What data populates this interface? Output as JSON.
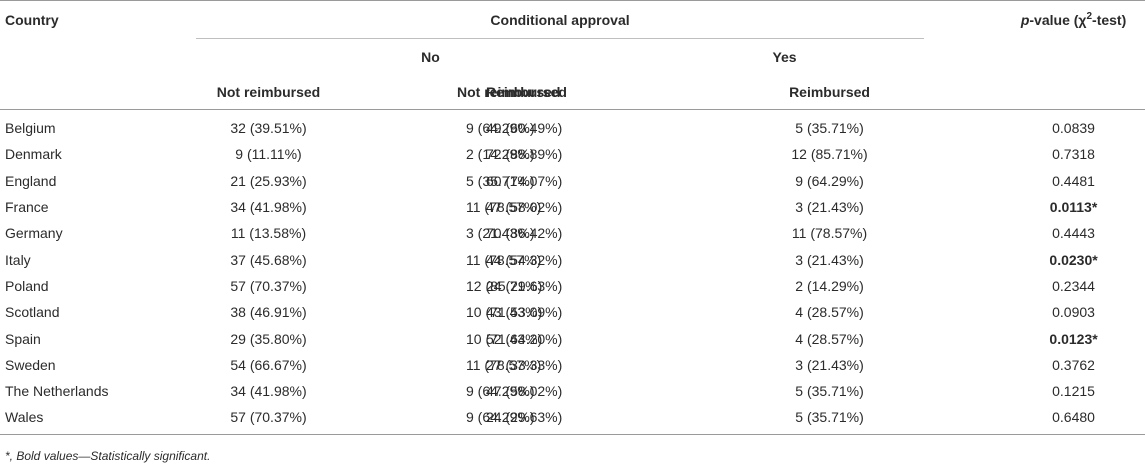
{
  "header": {
    "country": "Country",
    "conditional_approval": "Conditional approval",
    "pvalue_p": "p",
    "pvalue_rest_a": "-value (χ",
    "pvalue_sup": "2",
    "pvalue_rest_b": "-test)",
    "no": "No",
    "yes": "Yes",
    "not_reimbursed": "Not reimbursed",
    "reimbursed": "Reimbursed"
  },
  "rows": [
    {
      "country": "Belgium",
      "no_nr": "32 (39.51%)",
      "no_r": "49 (60.49%)",
      "yes_nr": "9 (64.29%)",
      "yes_r": "5 (35.71%)",
      "p": "0.0839",
      "sig": false
    },
    {
      "country": "Denmark",
      "no_nr": "9 (11.11%)",
      "no_r": "72 (88.89%)",
      "yes_nr": "2 (14.29%)",
      "yes_r": "12 (85.71%)",
      "p": "0.7318",
      "sig": false
    },
    {
      "country": "England",
      "no_nr": "21 (25.93%)",
      "no_r": "60 (74.07%)",
      "yes_nr": "5 (35.71%)",
      "yes_r": "9 (64.29%)",
      "p": "0.4481",
      "sig": false
    },
    {
      "country": "France",
      "no_nr": "34 (41.98%)",
      "no_r": "47 (58.02%)",
      "yes_nr": "11 (78.57%)",
      "yes_r": "3 (21.43%)",
      "p": "0.0113*",
      "sig": true
    },
    {
      "country": "Germany",
      "no_nr": "11 (13.58%)",
      "no_r": "70 (86.42%)",
      "yes_nr": "3 (21.43%)",
      "yes_r": "11 (78.57%)",
      "p": "0.4443",
      "sig": false
    },
    {
      "country": "Italy",
      "no_nr": "37 (45.68%)",
      "no_r": "44 (54.32%)",
      "yes_nr": "11 (78.57%)",
      "yes_r": "3 (21.43%)",
      "p": "0.0230*",
      "sig": true
    },
    {
      "country": "Poland",
      "no_nr": "57 (70.37%)",
      "no_r": "24 (29.63%)",
      "yes_nr": "12 (85.71%)",
      "yes_r": "2 (14.29%)",
      "p": "0.2344",
      "sig": false
    },
    {
      "country": "Scotland",
      "no_nr": "38 (46.91%)",
      "no_r": "43 (53.09%)",
      "yes_nr": "10 (71.43%)",
      "yes_r": "4 (28.57%)",
      "p": "0.0903",
      "sig": false
    },
    {
      "country": "Spain",
      "no_nr": "29 (35.80%)",
      "no_r": "52 (64.20%)",
      "yes_nr": "10 (71.43%)",
      "yes_r": "4 (28.57%)",
      "p": "0.0123*",
      "sig": true
    },
    {
      "country": "Sweden",
      "no_nr": "54 (66.67%)",
      "no_r": "27 (33.33%)",
      "yes_nr": "11 (78.57%)",
      "yes_r": "3 (21.43%)",
      "p": "0.3762",
      "sig": false
    },
    {
      "country": "The Netherlands",
      "no_nr": "34 (41.98%)",
      "no_r": "47 (58.02%)",
      "yes_nr": "9 (64.29%)",
      "yes_r": "5 (35.71%)",
      "p": "0.1215",
      "sig": false
    },
    {
      "country": "Wales",
      "no_nr": "57 (70.37%)",
      "no_r": "24 (29.63%)",
      "yes_nr": "9 (64.29%)",
      "yes_r": "5 (35.71%)",
      "p": "0.6480",
      "sig": false
    }
  ],
  "footnote": "*, Bold values—Statistically significant."
}
